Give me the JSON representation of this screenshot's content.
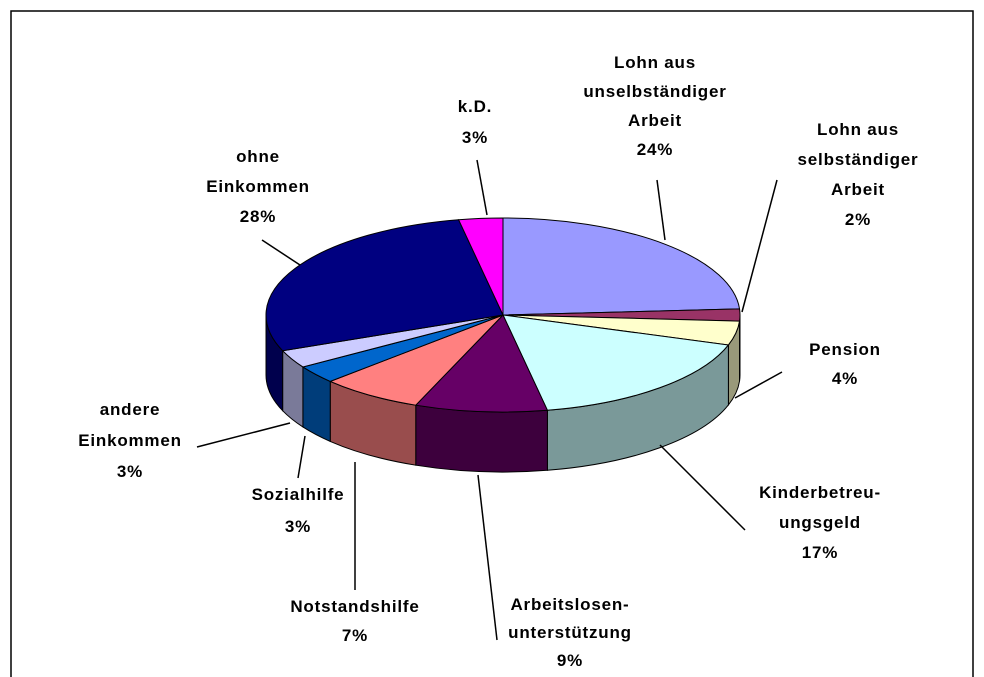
{
  "chart_data": {
    "type": "pie3d",
    "categories": [
      "Lohn aus\nunselbständiger\nArbeit",
      "Lohn aus\nselbständiger\nArbeit",
      "Pension",
      "Kinderbetreu-\nungsgeld",
      "Arbeitslosen-\nunterstützung",
      "Notstandshilfe",
      "Sozialhilfe",
      "andere\nEinkommen",
      "ohne\nEinkommen",
      "k.D."
    ],
    "values": [
      24,
      2,
      4,
      17,
      9,
      7,
      3,
      3,
      28,
      3
    ],
    "value_labels": [
      "24%",
      "2%",
      "4%",
      "17%",
      "9%",
      "7%",
      "3%",
      "3%",
      "28%",
      "3%"
    ],
    "colors": [
      "#9999ff",
      "#993366",
      "#ffffcc",
      "#ccffff",
      "#660066",
      "#ff8080",
      "#0066cc",
      "#ccccff",
      "#000080",
      "#ff00ff"
    ]
  }
}
